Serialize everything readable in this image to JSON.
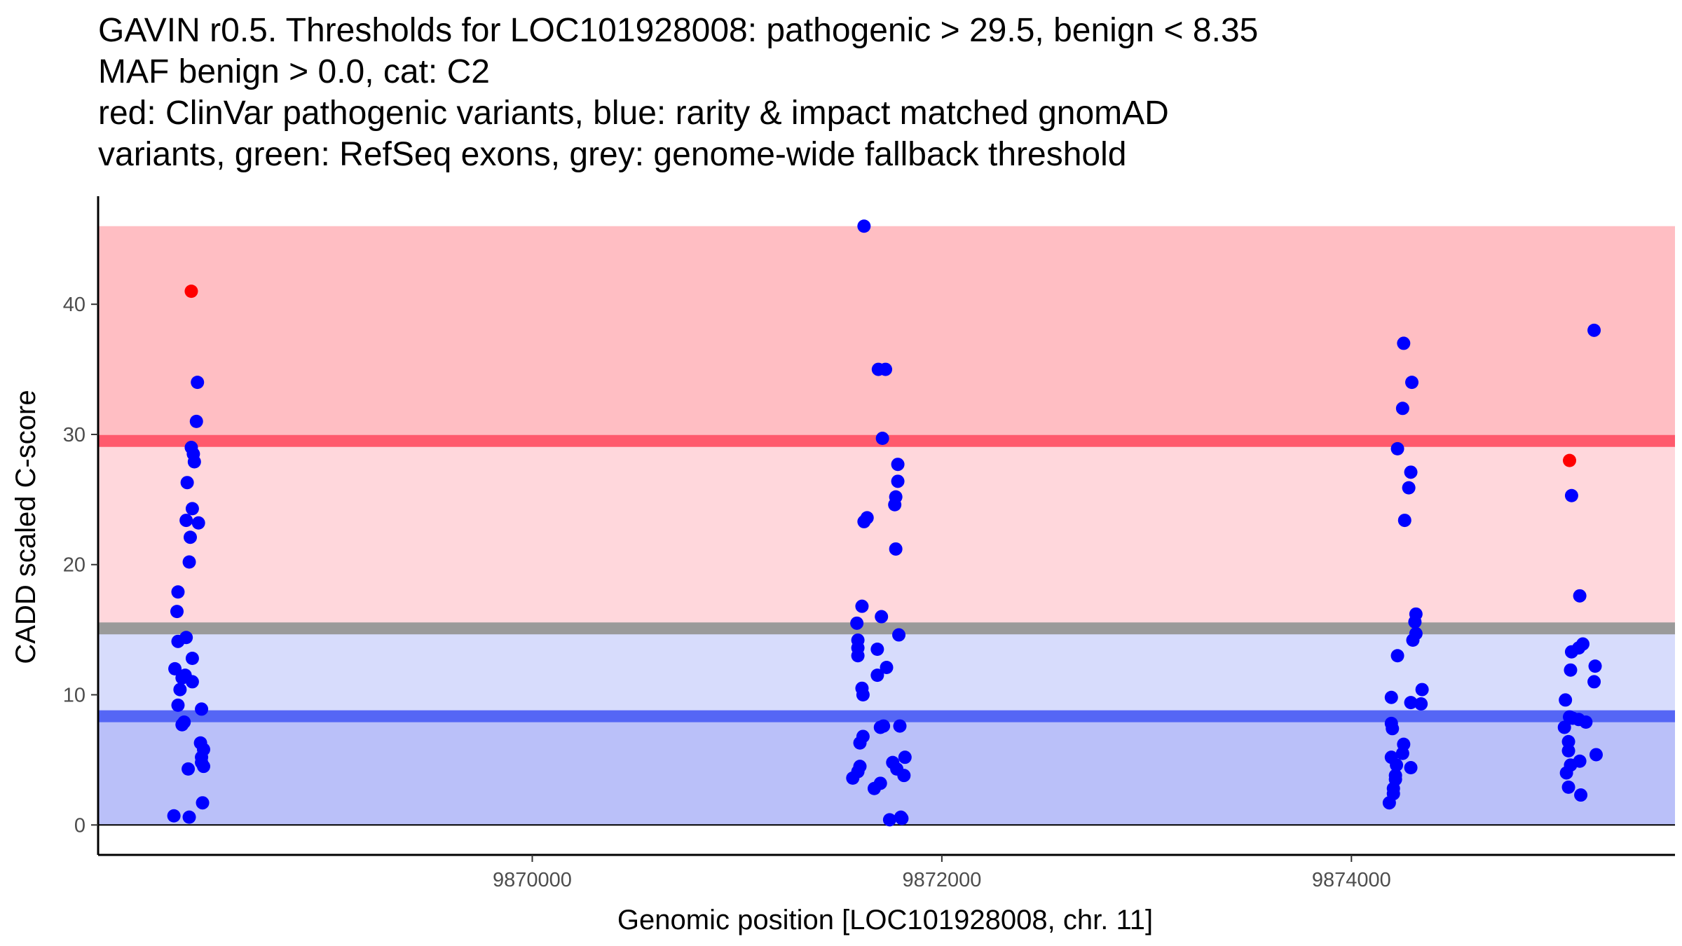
{
  "title_lines": [
    "GAVIN r0.5. Thresholds for LOC101928008: pathogenic > 29.5, benign < 8.35",
    "MAF benign > 0.0, cat: C2",
    "red: ClinVar pathogenic variants, blue: rarity & impact matched gnomAD",
    "variants, green: RefSeq exons, grey: genome-wide fallback threshold"
  ],
  "chart_data": {
    "type": "scatter",
    "xlabel": "Genomic position [LOC101928008, chr. 11]",
    "ylabel": "CADD scaled C-score",
    "xlim": [
      9867880,
      9875580
    ],
    "ylim": [
      -2.3,
      48.3
    ],
    "x_ticks": [
      9870000,
      9872000,
      9874000
    ],
    "x_tick_labels": [
      "9870000",
      "9872000",
      "9874000"
    ],
    "y_ticks": [
      0,
      10,
      20,
      30,
      40
    ],
    "y_tick_labels": [
      "0",
      "10",
      "20",
      "30",
      "40"
    ],
    "thresholds": {
      "pathogenic": 29.5,
      "benign": 8.35,
      "fallback": 15.1,
      "max_score": 46
    },
    "colors": {
      "pathogenic_zone": "#ffbec3",
      "pathogenic_between": "#ffd7dc",
      "benign_between": "#d7dcfc",
      "benign_zone": "#bac0f9",
      "pathogenic_line": "#ff5a6d",
      "fallback_line": "#9a9a9a",
      "benign_line": "#5566f5",
      "clinvar_point": "#ff0000",
      "gnomad_point": "#0000ff"
    },
    "series": [
      {
        "name": "ClinVar pathogenic variants",
        "color": "#ff0000",
        "points": [
          {
            "x": 9868335,
            "y": 41.0
          },
          {
            "x": 9875065,
            "y": 28.0
          }
        ]
      },
      {
        "name": "rarity & impact matched gnomAD variants",
        "color": "#0000ff",
        "points": [
          {
            "x": 9868365,
            "y": 34.0
          },
          {
            "x": 9868360,
            "y": 31.0
          },
          {
            "x": 9868335,
            "y": 29.0
          },
          {
            "x": 9868345,
            "y": 28.5
          },
          {
            "x": 9868350,
            "y": 27.9
          },
          {
            "x": 9868315,
            "y": 26.3
          },
          {
            "x": 9868340,
            "y": 24.3
          },
          {
            "x": 9868310,
            "y": 23.4
          },
          {
            "x": 9868370,
            "y": 23.2
          },
          {
            "x": 9868330,
            "y": 22.1
          },
          {
            "x": 9868325,
            "y": 20.2
          },
          {
            "x": 9868270,
            "y": 17.9
          },
          {
            "x": 9868265,
            "y": 16.4
          },
          {
            "x": 9868310,
            "y": 14.4
          },
          {
            "x": 9868270,
            "y": 14.1
          },
          {
            "x": 9868340,
            "y": 12.8
          },
          {
            "x": 9868255,
            "y": 12.0
          },
          {
            "x": 9868290,
            "y": 11.3
          },
          {
            "x": 9868305,
            "y": 11.5
          },
          {
            "x": 9868340,
            "y": 11.0
          },
          {
            "x": 9868280,
            "y": 10.4
          },
          {
            "x": 9868270,
            "y": 9.2
          },
          {
            "x": 9868385,
            "y": 8.9
          },
          {
            "x": 9868300,
            "y": 7.9
          },
          {
            "x": 9868290,
            "y": 7.7
          },
          {
            "x": 9868380,
            "y": 6.3
          },
          {
            "x": 9868395,
            "y": 5.8
          },
          {
            "x": 9868385,
            "y": 5.2
          },
          {
            "x": 9868385,
            "y": 4.8
          },
          {
            "x": 9868395,
            "y": 4.5
          },
          {
            "x": 9868320,
            "y": 4.3
          },
          {
            "x": 9868390,
            "y": 1.7
          },
          {
            "x": 9868250,
            "y": 0.7
          },
          {
            "x": 9868325,
            "y": 0.6
          },
          {
            "x": 9871620,
            "y": 46.0
          },
          {
            "x": 9871690,
            "y": 35.0
          },
          {
            "x": 9871725,
            "y": 35.0
          },
          {
            "x": 9871710,
            "y": 29.7
          },
          {
            "x": 9871785,
            "y": 27.7
          },
          {
            "x": 9871785,
            "y": 26.4
          },
          {
            "x": 9871775,
            "y": 25.2
          },
          {
            "x": 9871770,
            "y": 24.6
          },
          {
            "x": 9871635,
            "y": 23.6
          },
          {
            "x": 9871620,
            "y": 23.3
          },
          {
            "x": 9871775,
            "y": 21.2
          },
          {
            "x": 9871610,
            "y": 16.8
          },
          {
            "x": 9871705,
            "y": 16.0
          },
          {
            "x": 9871585,
            "y": 15.5
          },
          {
            "x": 9871790,
            "y": 14.6
          },
          {
            "x": 9871590,
            "y": 14.2
          },
          {
            "x": 9871590,
            "y": 13.6
          },
          {
            "x": 9871685,
            "y": 13.5
          },
          {
            "x": 9871590,
            "y": 13.0
          },
          {
            "x": 9871730,
            "y": 12.1
          },
          {
            "x": 9871685,
            "y": 11.5
          },
          {
            "x": 9871610,
            "y": 10.5
          },
          {
            "x": 9871615,
            "y": 10.0
          },
          {
            "x": 9871700,
            "y": 7.5
          },
          {
            "x": 9871715,
            "y": 7.6
          },
          {
            "x": 9871795,
            "y": 7.6
          },
          {
            "x": 9871615,
            "y": 6.8
          },
          {
            "x": 9871600,
            "y": 6.3
          },
          {
            "x": 9871820,
            "y": 5.2
          },
          {
            "x": 9871760,
            "y": 4.8
          },
          {
            "x": 9871600,
            "y": 4.5
          },
          {
            "x": 9871780,
            "y": 4.3
          },
          {
            "x": 9871590,
            "y": 4.1
          },
          {
            "x": 9871815,
            "y": 3.8
          },
          {
            "x": 9871565,
            "y": 3.6
          },
          {
            "x": 9871700,
            "y": 3.2
          },
          {
            "x": 9871670,
            "y": 2.8
          },
          {
            "x": 9871800,
            "y": 0.6
          },
          {
            "x": 9871805,
            "y": 0.5
          },
          {
            "x": 9871745,
            "y": 0.4
          },
          {
            "x": 9874255,
            "y": 37.0
          },
          {
            "x": 9874295,
            "y": 34.0
          },
          {
            "x": 9874250,
            "y": 32.0
          },
          {
            "x": 9874225,
            "y": 28.9
          },
          {
            "x": 9874290,
            "y": 27.1
          },
          {
            "x": 9874280,
            "y": 25.9
          },
          {
            "x": 9874260,
            "y": 23.4
          },
          {
            "x": 9874315,
            "y": 16.2
          },
          {
            "x": 9874310,
            "y": 15.6
          },
          {
            "x": 9874315,
            "y": 14.7
          },
          {
            "x": 9874300,
            "y": 14.2
          },
          {
            "x": 9874225,
            "y": 13.0
          },
          {
            "x": 9874345,
            "y": 10.4
          },
          {
            "x": 9874195,
            "y": 9.8
          },
          {
            "x": 9874290,
            "y": 9.4
          },
          {
            "x": 9874340,
            "y": 9.3
          },
          {
            "x": 9874195,
            "y": 7.8
          },
          {
            "x": 9874200,
            "y": 7.4
          },
          {
            "x": 9874255,
            "y": 6.2
          },
          {
            "x": 9874250,
            "y": 5.5
          },
          {
            "x": 9874195,
            "y": 5.2
          },
          {
            "x": 9874220,
            "y": 4.6
          },
          {
            "x": 9874290,
            "y": 4.4
          },
          {
            "x": 9874215,
            "y": 3.8
          },
          {
            "x": 9874215,
            "y": 3.5
          },
          {
            "x": 9874205,
            "y": 2.8
          },
          {
            "x": 9874205,
            "y": 2.4
          },
          {
            "x": 9874185,
            "y": 1.7
          },
          {
            "x": 9875185,
            "y": 38.0
          },
          {
            "x": 9875075,
            "y": 25.3
          },
          {
            "x": 9875115,
            "y": 17.6
          },
          {
            "x": 9875130,
            "y": 13.9
          },
          {
            "x": 9875110,
            "y": 13.6
          },
          {
            "x": 9875075,
            "y": 13.3
          },
          {
            "x": 9875190,
            "y": 12.2
          },
          {
            "x": 9875070,
            "y": 11.9
          },
          {
            "x": 9875185,
            "y": 11.0
          },
          {
            "x": 9875045,
            "y": 9.6
          },
          {
            "x": 9875065,
            "y": 8.3
          },
          {
            "x": 9875080,
            "y": 8.2
          },
          {
            "x": 9875110,
            "y": 8.1
          },
          {
            "x": 9875145,
            "y": 7.9
          },
          {
            "x": 9875040,
            "y": 7.5
          },
          {
            "x": 9875060,
            "y": 6.4
          },
          {
            "x": 9875060,
            "y": 5.7
          },
          {
            "x": 9875195,
            "y": 5.4
          },
          {
            "x": 9875115,
            "y": 4.9
          },
          {
            "x": 9875070,
            "y": 4.6
          },
          {
            "x": 9875050,
            "y": 4.0
          },
          {
            "x": 9875060,
            "y": 2.9
          },
          {
            "x": 9875120,
            "y": 2.3
          }
        ]
      }
    ]
  }
}
